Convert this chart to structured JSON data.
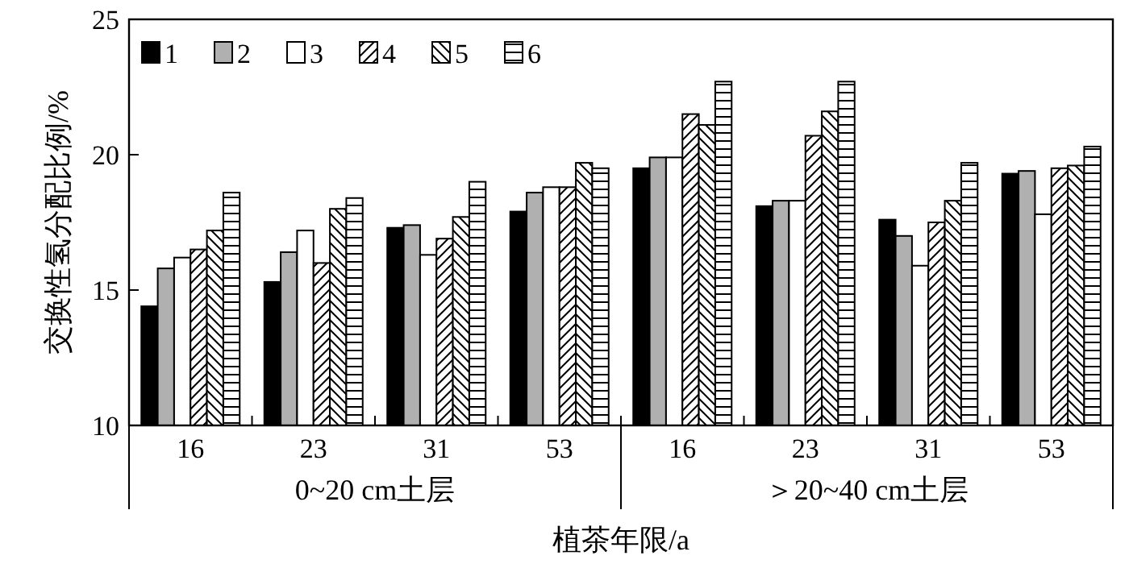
{
  "chart_data": {
    "type": "bar",
    "xlabel": "植茶年限/a",
    "ylabel": "交换性氢分配比例/%",
    "categories": [
      "16",
      "23",
      "31",
      "53",
      "16",
      "23",
      "31",
      "53"
    ],
    "annotations": [
      "0~20 cm土层",
      "＞20~40 cm土层"
    ],
    "ylim": [
      10,
      25
    ],
    "yticks": [
      10,
      15,
      20,
      25
    ],
    "legend": "top left",
    "grid": false,
    "series": [
      {
        "name": "1",
        "color": "#000000",
        "values": [
          14.4,
          15.3,
          17.3,
          17.9,
          19.5,
          18.1,
          17.6,
          19.3
        ]
      },
      {
        "name": "2",
        "color": "#b0b0b0",
        "values": [
          15.8,
          16.4,
          17.4,
          18.6,
          19.9,
          18.3,
          17.0,
          19.4
        ]
      },
      {
        "name": "3",
        "color": "#ffffff",
        "values": [
          16.2,
          17.2,
          16.3,
          18.8,
          19.9,
          18.3,
          15.9,
          17.8
        ]
      },
      {
        "name": "4",
        "color": "#000000",
        "values": [
          16.5,
          16.0,
          16.9,
          18.8,
          21.5,
          20.7,
          17.5,
          19.5
        ]
      },
      {
        "name": "5",
        "color": "#000000",
        "values": [
          17.2,
          18.0,
          17.7,
          19.7,
          21.1,
          21.6,
          18.3,
          19.6
        ]
      },
      {
        "name": "6",
        "color": "#000000",
        "values": [
          18.6,
          18.4,
          19.0,
          19.5,
          22.7,
          22.7,
          19.7,
          20.3
        ]
      }
    ]
  }
}
